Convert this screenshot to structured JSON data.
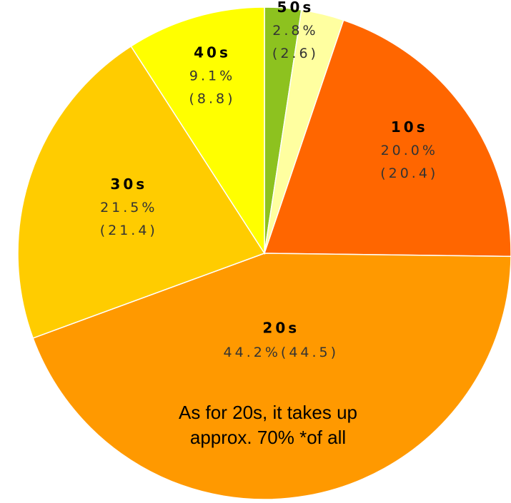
{
  "chart_data": {
    "type": "pie",
    "categories": [
      null,
      "50s",
      "10s",
      "20s",
      "30s",
      "40s"
    ],
    "values": [
      2.4,
      2.8,
      20.0,
      44.2,
      21.5,
      9.1
    ],
    "value_labels": [
      null,
      "2.8%",
      "20.0%",
      "44.2%",
      "21.5%",
      "9.1%"
    ],
    "secondary_labels": [
      null,
      "(2.6)",
      "(20.4)",
      "(44.5)",
      "(21.4)",
      "(8.8)"
    ],
    "colors": [
      "#8dc21f",
      "#ffffa0",
      "#ff6600",
      "#ff9900",
      "#ffcc00",
      "#ffff00"
    ],
    "annotation": [
      "As for 20s, it takes up",
      "approx. 70% *of all"
    ]
  }
}
